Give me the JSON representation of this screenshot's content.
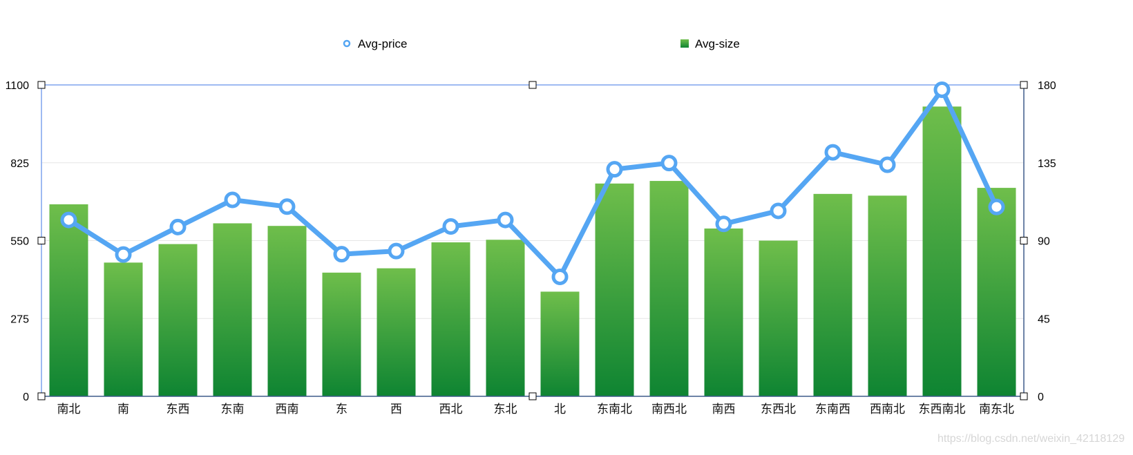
{
  "chart_data": {
    "type": "bar",
    "categories": [
      "南北",
      "南",
      "东西",
      "东南",
      "西南",
      "东",
      "西",
      "西北",
      "东北",
      "北",
      "东南北",
      "南西北",
      "南西",
      "东西北",
      "东南西",
      "西南北",
      "东西南北",
      "南东北"
    ],
    "series": [
      {
        "name": "Avg-price",
        "type": "line",
        "axis": "left",
        "values": [
          623,
          501,
          598,
          694,
          670,
          502,
          513,
          600,
          623,
          422,
          802,
          824,
          609,
          655,
          862,
          818,
          1083,
          669
        ]
      },
      {
        "name": "Avg-size",
        "type": "bar",
        "axis": "right",
        "values": [
          111,
          77.3,
          88,
          100,
          98.5,
          71.5,
          74,
          89,
          90.5,
          60.5,
          123,
          124.5,
          97,
          90,
          117,
          116,
          167.5,
          120.5
        ]
      }
    ],
    "y_left": {
      "ylim": [
        0,
        1100
      ],
      "ticks": [
        "0",
        "275",
        "550",
        "825",
        "1100"
      ]
    },
    "y_right": {
      "ylim": [
        0,
        180
      ],
      "ticks": [
        "0",
        "45",
        "90",
        "135",
        "180"
      ]
    },
    "grid": true,
    "legend": "top-center",
    "colors": {
      "line": "#55a6f3",
      "bar_top": "#6fbe4b",
      "bar_bottom": "#0e8432",
      "grid": "#e6e6e6",
      "frame": "#7ea3ee",
      "right_axis": "#3d5a8a"
    }
  },
  "watermark": "https://blog.csdn.net/weixin_42118129"
}
